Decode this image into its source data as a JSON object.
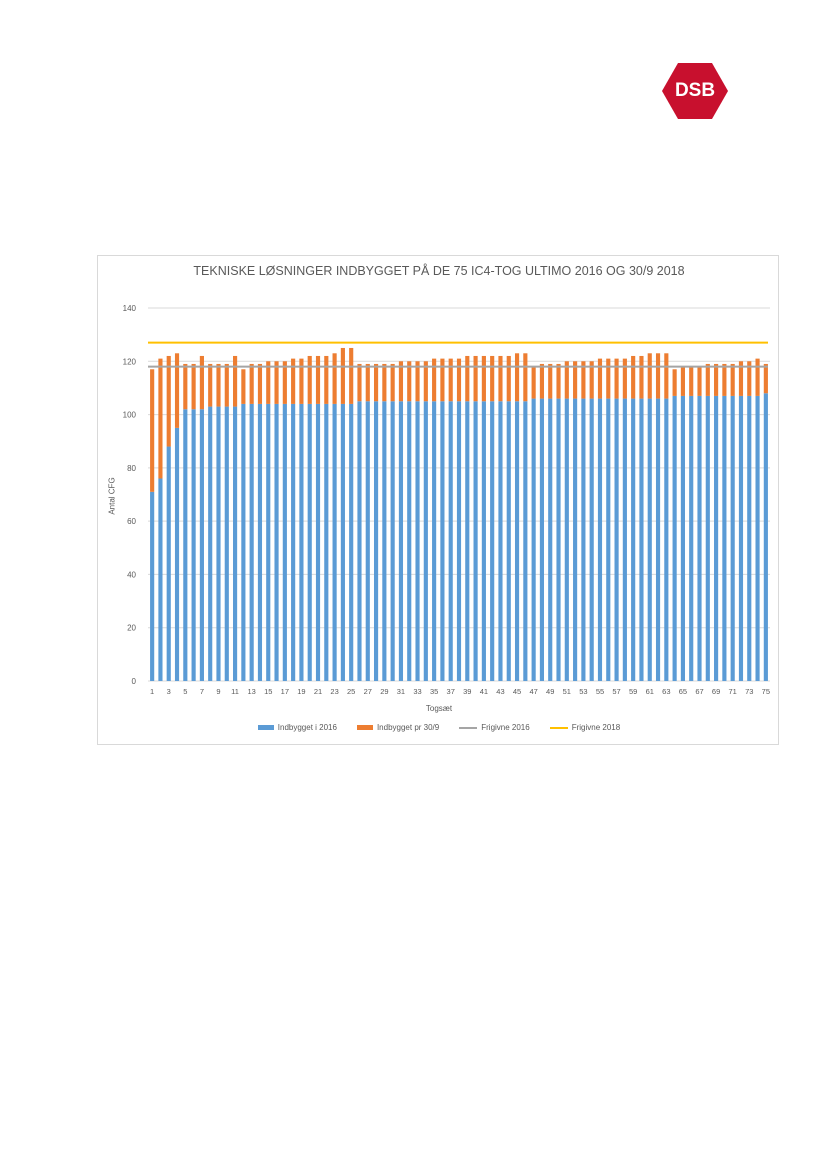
{
  "logo": {
    "text": "DSB",
    "color": "#c8102e"
  },
  "chart_data": {
    "type": "bar",
    "stacked": true,
    "title": "TEKNISKE LØSNINGER INDBYGGET PÅ DE 75 IC4-TOG ULTIMO 2016 OG 30/9 2018",
    "xlabel": "Togsæt",
    "ylabel": "Antal CFG",
    "ylim": [
      0,
      140
    ],
    "yticks": [
      "0",
      "20",
      "40",
      "60",
      "80",
      "100",
      "120",
      "140"
    ],
    "grid": true,
    "legend_position": "bottom",
    "categories": [
      1,
      2,
      3,
      4,
      5,
      6,
      7,
      8,
      9,
      10,
      11,
      12,
      13,
      14,
      15,
      16,
      17,
      18,
      19,
      20,
      21,
      22,
      23,
      24,
      25,
      26,
      27,
      28,
      29,
      30,
      31,
      32,
      33,
      34,
      35,
      36,
      37,
      38,
      39,
      40,
      41,
      42,
      43,
      44,
      45,
      46,
      47,
      48,
      49,
      50,
      51,
      52,
      53,
      54,
      55,
      56,
      57,
      58,
      59,
      60,
      61,
      62,
      63,
      64,
      65,
      66,
      67,
      68,
      69,
      70,
      71,
      72,
      73,
      74,
      75
    ],
    "series": [
      {
        "name": "Indbygget i 2016",
        "color": "#5b9bd5",
        "values": [
          71,
          76,
          88,
          95,
          102,
          102,
          102,
          103,
          103,
          103,
          103,
          104,
          104,
          104,
          104,
          104,
          104,
          104,
          104,
          104,
          104,
          104,
          104,
          104,
          104,
          105,
          105,
          105,
          105,
          105,
          105,
          105,
          105,
          105,
          105,
          105,
          105,
          105,
          105,
          105,
          105,
          105,
          105,
          105,
          105,
          105,
          106,
          106,
          106,
          106,
          106,
          106,
          106,
          106,
          106,
          106,
          106,
          106,
          106,
          106,
          106,
          106,
          106,
          107,
          107,
          107,
          107,
          107,
          107,
          107,
          107,
          107,
          107,
          107,
          108
        ]
      },
      {
        "name": "Indbygget pr 30/9",
        "color": "#ed7d31",
        "values": [
          46,
          45,
          34,
          28,
          17,
          17,
          20,
          16,
          16,
          16,
          19,
          13,
          15,
          15,
          16,
          16,
          16,
          17,
          17,
          18,
          18,
          18,
          19,
          21,
          21,
          14,
          14,
          14,
          14,
          14,
          15,
          15,
          15,
          15,
          16,
          16,
          16,
          16,
          17,
          17,
          17,
          17,
          17,
          17,
          18,
          18,
          12,
          13,
          13,
          13,
          14,
          14,
          14,
          14,
          15,
          15,
          15,
          15,
          16,
          16,
          17,
          17,
          17,
          10,
          11,
          11,
          11,
          12,
          12,
          12,
          12,
          13,
          13,
          14,
          11
        ]
      }
    ],
    "lines": [
      {
        "name": "Frigivne 2016",
        "color": "#a5a5a5",
        "value": 118
      },
      {
        "name": "Frigivne 2018",
        "color": "#ffc000",
        "value": 127
      }
    ]
  }
}
